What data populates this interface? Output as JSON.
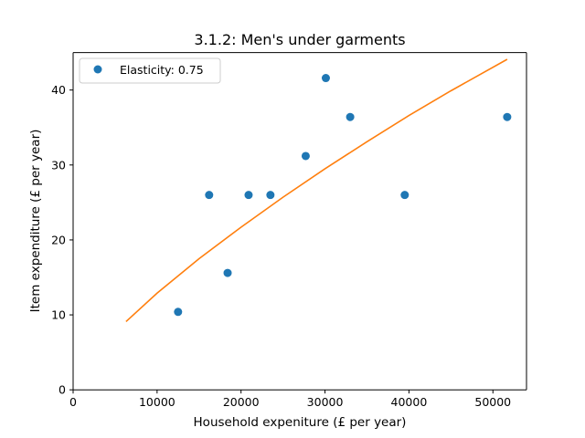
{
  "chart_data": {
    "type": "scatter",
    "title": "3.1.2: Men's under garments",
    "xlabel": "Household expeniture (£ per year)",
    "ylabel": "Item expenditure (£ per year)",
    "xlim": [
      0,
      54000
    ],
    "ylim": [
      0,
      45
    ],
    "xticks": [
      0,
      10000,
      20000,
      30000,
      40000,
      50000
    ],
    "yticks": [
      0,
      10,
      20,
      30,
      40
    ],
    "grid": false,
    "legend_position": "top-left",
    "series": [
      {
        "name": "Elasticity: 0.75",
        "kind": "scatter",
        "color": "#1f77b4",
        "x": [
          12500,
          16200,
          18400,
          20900,
          23500,
          27700,
          30100,
          33000,
          39500,
          51700
        ],
        "y": [
          10.4,
          26.0,
          15.6,
          26.0,
          26.0,
          31.2,
          41.6,
          36.4,
          26.0,
          36.4
        ]
      },
      {
        "kind": "line",
        "color": "#ff7f0e",
        "x": [
          6300,
          10000,
          15000,
          20000,
          25000,
          30000,
          35000,
          40000,
          45000,
          51700
        ],
        "y": [
          9.1,
          12.9,
          17.5,
          21.7,
          25.7,
          29.5,
          33.1,
          36.6,
          39.9,
          44.1
        ]
      }
    ]
  }
}
